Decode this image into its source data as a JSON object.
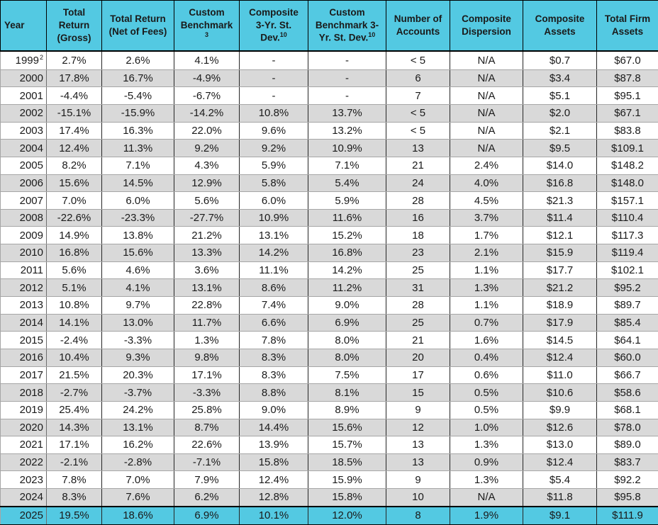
{
  "chart_data": {
    "type": "table",
    "columns": [
      {
        "id": "year",
        "label": "Year",
        "lines": [
          {
            "text": "Year"
          }
        ]
      },
      {
        "id": "total-return-gross",
        "label": "Total Return (Gross)",
        "lines": [
          {
            "text": "Total"
          },
          {
            "text": "Return"
          },
          {
            "text": "(Gross)"
          }
        ]
      },
      {
        "id": "total-return-net",
        "label": "Total Return (Net of Fees)",
        "lines": [
          {
            "text": "Total Return"
          },
          {
            "text": "(Net of Fees)"
          }
        ]
      },
      {
        "id": "custom-benchmark",
        "label": "Custom Benchmark 3",
        "lines": [
          {
            "text": "Custom"
          },
          {
            "text": "Benchmark"
          },
          {
            "text": "",
            "sup": "3"
          }
        ]
      },
      {
        "id": "composite-3yr-st-dev",
        "label": "Composite 3-Yr. St. Dev. 10",
        "lines": [
          {
            "text": "Composite"
          },
          {
            "text": "3-Yr. St."
          },
          {
            "text": "Dev.",
            "sup": "10"
          }
        ]
      },
      {
        "id": "benchmark-3yr-st-dev",
        "label": "Custom Benchmark 3-Yr. St. Dev. 10",
        "lines": [
          {
            "text": "Custom"
          },
          {
            "text": "Benchmark 3-"
          },
          {
            "text": "Yr. St. Dev.",
            "sup": "10"
          }
        ]
      },
      {
        "id": "number-of-accounts",
        "label": "Number of Accounts",
        "lines": [
          {
            "text": "Number of"
          },
          {
            "text": "Accounts"
          }
        ]
      },
      {
        "id": "composite-dispersion",
        "label": "Composite Dispersion",
        "lines": [
          {
            "text": "Composite"
          },
          {
            "text": "Dispersion"
          }
        ]
      },
      {
        "id": "composite-assets",
        "label": "Composite Assets",
        "lines": [
          {
            "text": "Composite"
          },
          {
            "text": "Assets"
          }
        ]
      },
      {
        "id": "total-firm-assets",
        "label": "Total Firm Assets",
        "lines": [
          {
            "text": "Total Firm"
          },
          {
            "text": "Assets"
          }
        ]
      }
    ],
    "rows": [
      {
        "year": "1999",
        "year_sup": "2",
        "values": [
          "2.7%",
          "2.6%",
          "4.1%",
          "-",
          "-",
          "< 5",
          "N/A",
          "$0.7",
          "$67.0"
        ]
      },
      {
        "year": "2000",
        "values": [
          "17.8%",
          "16.7%",
          "-4.9%",
          "-",
          "-",
          "6",
          "N/A",
          "$3.4",
          "$87.8"
        ]
      },
      {
        "year": "2001",
        "values": [
          "-4.4%",
          "-5.4%",
          "-6.7%",
          "-",
          "-",
          "7",
          "N/A",
          "$5.1",
          "$95.1"
        ]
      },
      {
        "year": "2002",
        "values": [
          "-15.1%",
          "-15.9%",
          "-14.2%",
          "10.8%",
          "13.7%",
          "< 5",
          "N/A",
          "$2.0",
          "$67.1"
        ]
      },
      {
        "year": "2003",
        "values": [
          "17.4%",
          "16.3%",
          "22.0%",
          "9.6%",
          "13.2%",
          "< 5",
          "N/A",
          "$2.1",
          "$83.8"
        ]
      },
      {
        "year": "2004",
        "values": [
          "12.4%",
          "11.3%",
          "9.2%",
          "9.2%",
          "10.9%",
          "13",
          "N/A",
          "$9.5",
          "$109.1"
        ]
      },
      {
        "year": "2005",
        "values": [
          "8.2%",
          "7.1%",
          "4.3%",
          "5.9%",
          "7.1%",
          "21",
          "2.4%",
          "$14.0",
          "$148.2"
        ]
      },
      {
        "year": "2006",
        "values": [
          "15.6%",
          "14.5%",
          "12.9%",
          "5.8%",
          "5.4%",
          "24",
          "4.0%",
          "$16.8",
          "$148.0"
        ]
      },
      {
        "year": "2007",
        "values": [
          "7.0%",
          "6.0%",
          "5.6%",
          "6.0%",
          "5.9%",
          "28",
          "4.5%",
          "$21.3",
          "$157.1"
        ]
      },
      {
        "year": "2008",
        "values": [
          "-22.6%",
          "-23.3%",
          "-27.7%",
          "10.9%",
          "11.6%",
          "16",
          "3.7%",
          "$11.4",
          "$110.4"
        ]
      },
      {
        "year": "2009",
        "values": [
          "14.9%",
          "13.8%",
          "21.2%",
          "13.1%",
          "15.2%",
          "18",
          "1.7%",
          "$12.1",
          "$117.3"
        ]
      },
      {
        "year": "2010",
        "values": [
          "16.8%",
          "15.6%",
          "13.3%",
          "14.2%",
          "16.8%",
          "23",
          "2.1%",
          "$15.9",
          "$119.4"
        ]
      },
      {
        "year": "2011",
        "values": [
          "5.6%",
          "4.6%",
          "3.6%",
          "11.1%",
          "14.2%",
          "25",
          "1.1%",
          "$17.7",
          "$102.1"
        ]
      },
      {
        "year": "2012",
        "values": [
          "5.1%",
          "4.1%",
          "13.1%",
          "8.6%",
          "11.2%",
          "31",
          "1.3%",
          "$21.2",
          "$95.2"
        ]
      },
      {
        "year": "2013",
        "values": [
          "10.8%",
          "9.7%",
          "22.8%",
          "7.4%",
          "9.0%",
          "28",
          "1.1%",
          "$18.9",
          "$89.7"
        ]
      },
      {
        "year": "2014",
        "values": [
          "14.1%",
          "13.0%",
          "11.7%",
          "6.6%",
          "6.9%",
          "25",
          "0.7%",
          "$17.9",
          "$85.4"
        ]
      },
      {
        "year": "2015",
        "values": [
          "-2.4%",
          "-3.3%",
          "1.3%",
          "7.8%",
          "8.0%",
          "21",
          "1.6%",
          "$14.5",
          "$64.1"
        ]
      },
      {
        "year": "2016",
        "values": [
          "10.4%",
          "9.3%",
          "9.8%",
          "8.3%",
          "8.0%",
          "20",
          "0.4%",
          "$12.4",
          "$60.0"
        ]
      },
      {
        "year": "2017",
        "values": [
          "21.5%",
          "20.3%",
          "17.1%",
          "8.3%",
          "7.5%",
          "17",
          "0.6%",
          "$11.0",
          "$66.7"
        ]
      },
      {
        "year": "2018",
        "values": [
          "-2.7%",
          "-3.7%",
          "-3.3%",
          "8.8%",
          "8.1%",
          "15",
          "0.5%",
          "$10.6",
          "$58.6"
        ]
      },
      {
        "year": "2019",
        "values": [
          "25.4%",
          "24.2%",
          "25.8%",
          "9.0%",
          "8.9%",
          "9",
          "0.5%",
          "$9.9",
          "$68.1"
        ]
      },
      {
        "year": "2020",
        "values": [
          "14.3%",
          "13.1%",
          "8.7%",
          "14.4%",
          "15.6%",
          "12",
          "1.0%",
          "$12.6",
          "$78.0"
        ]
      },
      {
        "year": "2021",
        "values": [
          "17.1%",
          "16.2%",
          "22.6%",
          "13.9%",
          "15.7%",
          "13",
          "1.3%",
          "$13.0",
          "$89.0"
        ]
      },
      {
        "year": "2022",
        "values": [
          "-2.1%",
          "-2.8%",
          "-7.1%",
          "15.8%",
          "18.5%",
          "13",
          "0.9%",
          "$12.4",
          "$83.7"
        ]
      },
      {
        "year": "2023",
        "values": [
          "7.8%",
          "7.0%",
          "7.9%",
          "12.4%",
          "15.9%",
          "9",
          "1.3%",
          "$5.4",
          "$92.2"
        ]
      },
      {
        "year": "2024",
        "values": [
          "8.3%",
          "7.6%",
          "6.2%",
          "12.8%",
          "15.8%",
          "10",
          "N/A",
          "$11.8",
          "$95.8"
        ]
      },
      {
        "year": "2025",
        "highlight": true,
        "values": [
          "19.5%",
          "18.6%",
          "6.9%",
          "10.1%",
          "12.0%",
          "8",
          "1.9%",
          "$9.1",
          "$111.9"
        ]
      }
    ]
  },
  "colors": {
    "header_bg": "#53C9E2",
    "highlight_bg": "#53C9E2",
    "row_bg": "#FFFFFF",
    "row_alt_bg": "#D9D9D9",
    "text": "#1A1A1A",
    "border_dark": "#000000",
    "border_light": "#A6A6A6"
  }
}
